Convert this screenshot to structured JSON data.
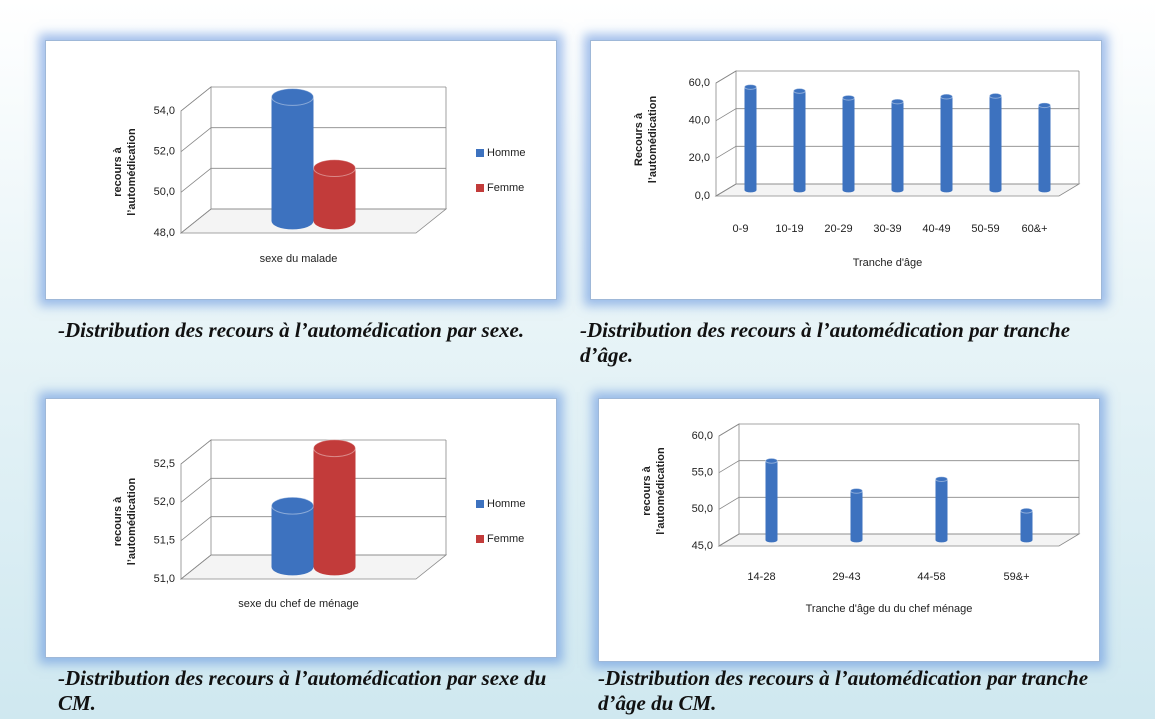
{
  "chart_data": [
    {
      "type": "bar",
      "ylabel": [
        "recours à",
        "l’automédication"
      ],
      "xlabel": "sexe du malade",
      "categories": [
        null
      ],
      "series": [
        {
          "name": "Homme",
          "color": "#3d72bf",
          "values": [
            54.1
          ]
        },
        {
          "name": "Femme",
          "color": "#c23b3a",
          "values": [
            50.6
          ]
        }
      ],
      "ylim": [
        48,
        54
      ],
      "yticks": [
        {
          "value": 48,
          "label": "48,0"
        },
        {
          "value": 50,
          "label": "50,0"
        },
        {
          "value": 52,
          "label": "52,0"
        },
        {
          "value": 54,
          "label": "54,0"
        }
      ],
      "grid": true,
      "legend": "right",
      "caption": "-Distribution des recours à l’automédication par sexe."
    },
    {
      "type": "bar",
      "ylabel": [
        "Recours à",
        "l’automédication"
      ],
      "xlabel": "Tranche d'âge",
      "categories": [
        "0-9",
        "10-19",
        "20-29",
        "30-39",
        "40-49",
        "50-59",
        "60&+"
      ],
      "values": [
        54.7,
        52.6,
        49,
        47,
        49.6,
        50,
        45
      ],
      "color": "#3d72bf",
      "ylim": [
        0,
        60
      ],
      "yticks": [
        {
          "value": 0,
          "label": "0,0"
        },
        {
          "value": 20,
          "label": "20,0"
        },
        {
          "value": 40,
          "label": "40,0"
        },
        {
          "value": 60,
          "label": "60,0"
        }
      ],
      "grid": true,
      "caption": "-Distribution des recours à l’automédication par tranche d’âge."
    },
    {
      "type": "bar",
      "ylabel": [
        "recours à",
        "l’automédication"
      ],
      "xlabel": "sexe du chef de ménage",
      "categories": [
        null
      ],
      "series": [
        {
          "name": "Homme",
          "color": "#3d72bf",
          "values": [
            51.8
          ]
        },
        {
          "name": "Femme",
          "color": "#c23b3a",
          "values": [
            52.55
          ]
        }
      ],
      "ylim": [
        51,
        52.5
      ],
      "yticks": [
        {
          "value": 51,
          "label": "51,0"
        },
        {
          "value": 51.5,
          "label": "51,5"
        },
        {
          "value": 52,
          "label": "52,0"
        },
        {
          "value": 52.5,
          "label": "52,5"
        }
      ],
      "grid": true,
      "legend": "right",
      "caption": "-Distribution des recours à l’automédication par sexe du CM."
    },
    {
      "type": "bar",
      "ylabel": [
        "recours à",
        "l’automédication"
      ],
      "xlabel": "Tranche d'âge du du chef ménage",
      "categories": [
        "14-28",
        "29-43",
        "44-58",
        "59&+"
      ],
      "values": [
        55.8,
        51.7,
        53.3,
        49
      ],
      "color": "#3d72bf",
      "ylim": [
        45,
        60
      ],
      "yticks": [
        {
          "value": 45,
          "label": "45,0"
        },
        {
          "value": 50,
          "label": "50,0"
        },
        {
          "value": 55,
          "label": "55,0"
        },
        {
          "value": 60,
          "label": "60,0"
        }
      ],
      "grid": true,
      "caption": "-Distribution des recours à l’automédication par tranche d’âge du CM."
    }
  ]
}
